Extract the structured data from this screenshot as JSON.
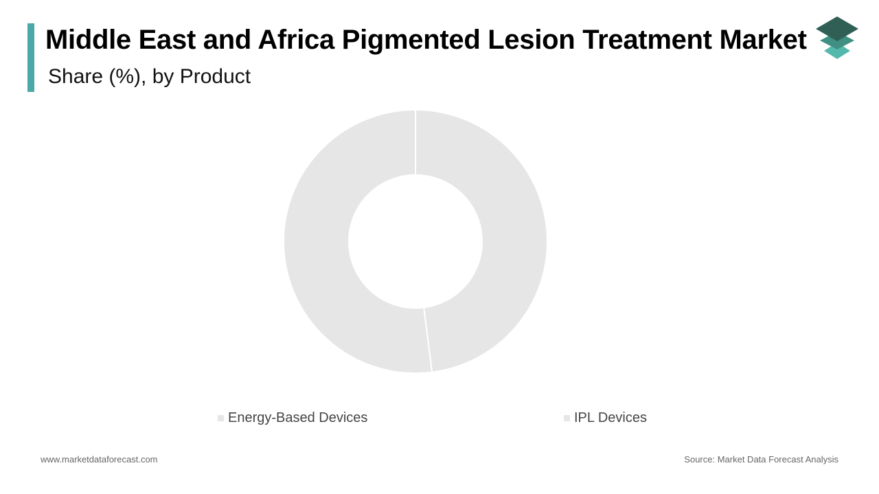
{
  "header": {
    "title": "Middle East and Africa Pigmented Lesion Treatment Market",
    "subtitle": "Share (%), by Product"
  },
  "colors": {
    "accent": "#4aa8a8",
    "slice": "#e6e6e6",
    "logo_dark": "#2f5f55",
    "logo_mid": "#3f8f83",
    "logo_light": "#55b8ad"
  },
  "chart_data": {
    "type": "pie",
    "donut": true,
    "categories": [
      "Energy-Based Devices",
      "IPL Devices"
    ],
    "values": [
      48,
      52
    ],
    "legend_position": "bottom"
  },
  "footer": {
    "website": "www.marketdataforecast.com",
    "source": "Source: Market Data Forecast Analysis"
  }
}
